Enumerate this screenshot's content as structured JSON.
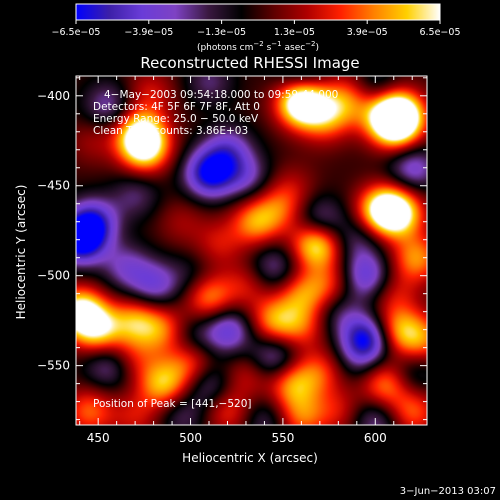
{
  "chart_data": {
    "type": "heatmap",
    "title": "Reconstructed RHESSI Image",
    "xlabel": "Heliocentric X (arcsec)",
    "ylabel": "Heliocentric Y (arcsec)",
    "xlim": [
      438,
      628
    ],
    "ylim": [
      -583,
      -389
    ],
    "x_ticks": [
      450,
      500,
      550,
      600
    ],
    "y_ticks": [
      -400,
      -450,
      -500,
      -550
    ],
    "colorbar": {
      "range": [
        -6.5e-05,
        6.5e-05
      ],
      "tick_labels": [
        "−6.5e−05",
        "−3.9e−05",
        "−1.3e−05",
        "1.3e−05",
        "3.9e−05",
        "6.5e−05"
      ],
      "units_line1": "(photons cm",
      "units_sup1": "−2",
      "units_line2": " s",
      "units_sup2": "−1",
      "units_line3": " asec",
      "units_sup3": "−2",
      "units_line4": ")",
      "colormap": [
        "#0000ff",
        "#3c1fa8",
        "#6a3cd8",
        "#7e42c4",
        "#3a1840",
        "#000000",
        "#600000",
        "#b00000",
        "#ff2000",
        "#ff8000",
        "#ffd000",
        "#ffffff"
      ]
    },
    "annotations": [
      "4−May−2003 09:54:18.000 to 09:59:44.000",
      "Detectors: 4F 5F 6F 7F 8F, Att 0",
      "Energy Range: 25.0 − 50.0 keV",
      "Clean     Total counts: 3.86E+03"
    ],
    "peak_label": "Position of Peak = [441,−520]",
    "peak": {
      "x": 441,
      "y": -520
    },
    "blobs": [
      {
        "x": 455,
        "y": -405,
        "v": -0.4
      },
      {
        "x": 478,
        "y": -398,
        "v": 0.3
      },
      {
        "x": 510,
        "y": -392,
        "v": -0.3
      },
      {
        "x": 560,
        "y": -392,
        "v": -0.6
      },
      {
        "x": 600,
        "y": -395,
        "v": -0.3
      },
      {
        "x": 447,
        "y": -425,
        "v": 0.2
      },
      {
        "x": 520,
        "y": -430,
        "v": -0.5
      },
      {
        "x": 570,
        "y": -420,
        "v": 0.1
      },
      {
        "x": 585,
        "y": -400,
        "v": 0.4
      },
      {
        "x": 612,
        "y": -420,
        "v": 0.3
      },
      {
        "x": 473,
        "y": -421,
        "v": 0.9
      },
      {
        "x": 475,
        "y": -430,
        "v": 0.7
      },
      {
        "x": 510,
        "y": -443,
        "v": -0.9
      },
      {
        "x": 530,
        "y": -445,
        "v": -0.4
      },
      {
        "x": 555,
        "y": -450,
        "v": 0.2
      },
      {
        "x": 560,
        "y": -405,
        "v": 0.7
      },
      {
        "x": 560,
        "y": -400,
        "v": 0.8
      },
      {
        "x": 575,
        "y": -410,
        "v": 0.5
      },
      {
        "x": 597,
        "y": -409,
        "v": 0.2
      },
      {
        "x": 613,
        "y": -410,
        "v": 0.9
      },
      {
        "x": 609,
        "y": -413,
        "v": 0.8
      },
      {
        "x": 620,
        "y": -440,
        "v": -0.5
      },
      {
        "x": 470,
        "y": -455,
        "v": -0.3
      },
      {
        "x": 495,
        "y": -470,
        "v": 0.2
      },
      {
        "x": 440,
        "y": -480,
        "v": -1.0
      },
      {
        "x": 447,
        "y": -470,
        "v": -0.7
      },
      {
        "x": 515,
        "y": -482,
        "v": 0.3
      },
      {
        "x": 535,
        "y": -470,
        "v": 0.6
      },
      {
        "x": 548,
        "y": -462,
        "v": 0.4
      },
      {
        "x": 570,
        "y": -470,
        "v": -0.5
      },
      {
        "x": 590,
        "y": -480,
        "v": -0.3
      },
      {
        "x": 568,
        "y": -482,
        "v": 0.95
      },
      {
        "x": 603,
        "y": -463,
        "v": 0.8
      },
      {
        "x": 612,
        "y": -465,
        "v": 0.9
      },
      {
        "x": 622,
        "y": -490,
        "v": 0.6
      },
      {
        "x": 465,
        "y": -495,
        "v": -0.4
      },
      {
        "x": 480,
        "y": -505,
        "v": -0.5
      },
      {
        "x": 500,
        "y": -500,
        "v": -0.2
      },
      {
        "x": 510,
        "y": -512,
        "v": 0.6
      },
      {
        "x": 530,
        "y": -505,
        "v": 0.3
      },
      {
        "x": 545,
        "y": -495,
        "v": -0.4
      },
      {
        "x": 560,
        "y": -510,
        "v": 0.5
      },
      {
        "x": 575,
        "y": -505,
        "v": 0.4
      },
      {
        "x": 595,
        "y": -500,
        "v": -0.6
      },
      {
        "x": 610,
        "y": -510,
        "v": 0.3
      },
      {
        "x": 440,
        "y": -520,
        "v": 1.0
      },
      {
        "x": 450,
        "y": -530,
        "v": 0.7
      },
      {
        "x": 470,
        "y": -525,
        "v": 0.6
      },
      {
        "x": 485,
        "y": -530,
        "v": 0.5
      },
      {
        "x": 500,
        "y": -535,
        "v": -0.3
      },
      {
        "x": 520,
        "y": -530,
        "v": -0.6
      },
      {
        "x": 545,
        "y": -525,
        "v": 0.6
      },
      {
        "x": 560,
        "y": -528,
        "v": 0.4
      },
      {
        "x": 580,
        "y": -520,
        "v": -0.3
      },
      {
        "x": 595,
        "y": -535,
        "v": -0.9
      },
      {
        "x": 612,
        "y": -530,
        "v": 0.6
      },
      {
        "x": 625,
        "y": -535,
        "v": 0.5
      },
      {
        "x": 455,
        "y": -550,
        "v": -0.4
      },
      {
        "x": 470,
        "y": -545,
        "v": 0.3
      },
      {
        "x": 485,
        "y": -560,
        "v": 0.7
      },
      {
        "x": 500,
        "y": -548,
        "v": 0.5
      },
      {
        "x": 510,
        "y": -560,
        "v": -0.4
      },
      {
        "x": 530,
        "y": -555,
        "v": 0.3
      },
      {
        "x": 545,
        "y": -545,
        "v": -0.5
      },
      {
        "x": 555,
        "y": -560,
        "v": 0.6
      },
      {
        "x": 570,
        "y": -553,
        "v": 0.4
      },
      {
        "x": 590,
        "y": -548,
        "v": -0.2
      },
      {
        "x": 605,
        "y": -560,
        "v": 0.6
      },
      {
        "x": 620,
        "y": -555,
        "v": -0.3
      },
      {
        "x": 445,
        "y": -575,
        "v": 0.5
      },
      {
        "x": 470,
        "y": -578,
        "v": 0.3
      },
      {
        "x": 495,
        "y": -577,
        "v": -0.3
      },
      {
        "x": 520,
        "y": -575,
        "v": 0.4
      },
      {
        "x": 540,
        "y": -580,
        "v": -0.3
      },
      {
        "x": 560,
        "y": -578,
        "v": 0.5
      },
      {
        "x": 580,
        "y": -575,
        "v": 0.3
      },
      {
        "x": 600,
        "y": -580,
        "v": -0.4
      },
      {
        "x": 620,
        "y": -575,
        "v": 0.5
      }
    ]
  },
  "footer": {
    "date": "3−Jun−2013 03:07"
  }
}
